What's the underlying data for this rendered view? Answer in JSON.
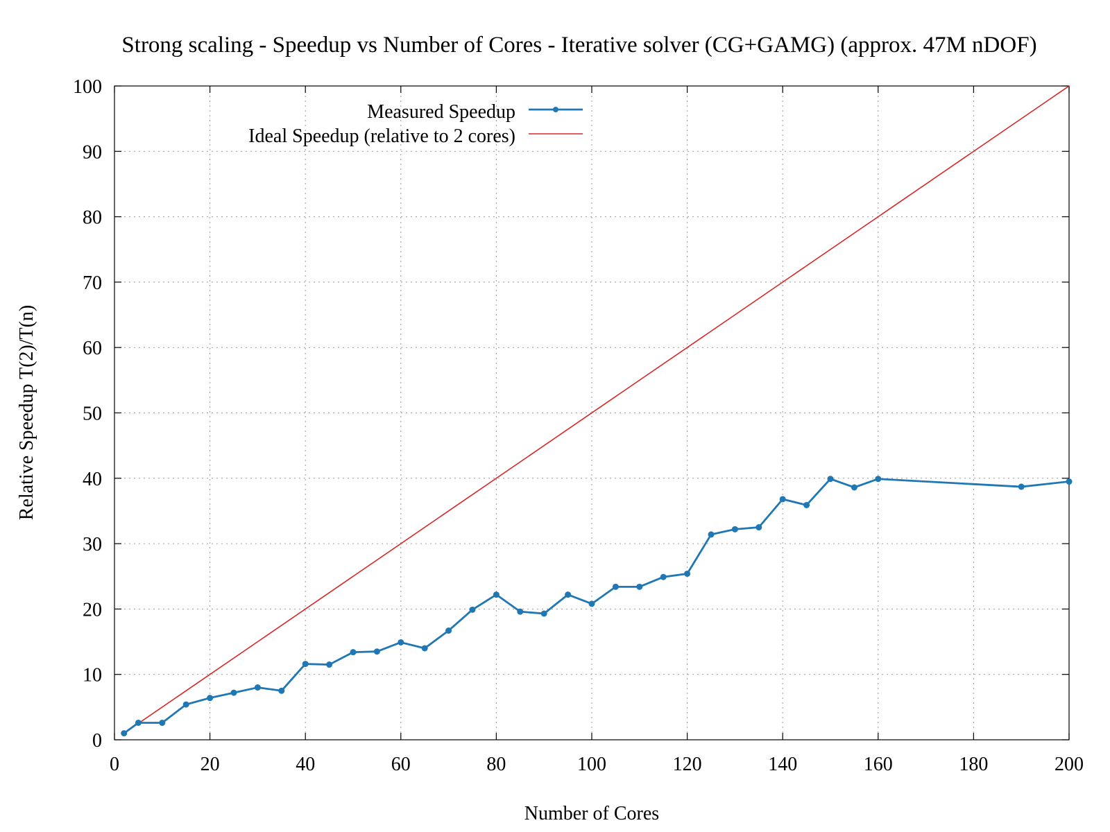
{
  "chart_data": {
    "type": "line",
    "title": "Strong scaling -  Speedup vs Number of Cores - Iterative solver (CG+GAMG) (approx. 47M nDOF)",
    "xlabel": "Number of Cores",
    "ylabel": "Relative Speedup T(2)/T(n)",
    "xlim": [
      0,
      200
    ],
    "ylim": [
      0,
      100
    ],
    "xticks": [
      0,
      20,
      40,
      60,
      80,
      100,
      120,
      140,
      160,
      180,
      200
    ],
    "yticks": [
      0,
      10,
      20,
      30,
      40,
      50,
      60,
      70,
      80,
      90,
      100
    ],
    "grid": true,
    "legend_position": "top-center",
    "series": [
      {
        "name": "Measured Speedup",
        "color": "#1f77b4",
        "marker": "circle",
        "x": [
          2,
          5,
          10,
          15,
          20,
          25,
          30,
          35,
          40,
          45,
          50,
          55,
          60,
          65,
          70,
          75,
          80,
          85,
          90,
          95,
          100,
          105,
          110,
          115,
          120,
          125,
          130,
          135,
          140,
          145,
          150,
          155,
          160,
          190,
          200
        ],
        "y": [
          1.0,
          2.6,
          2.6,
          5.4,
          6.4,
          7.2,
          8.0,
          7.5,
          11.6,
          11.5,
          13.4,
          13.5,
          14.9,
          14.0,
          16.7,
          19.9,
          22.2,
          19.6,
          19.3,
          22.2,
          20.8,
          23.4,
          23.4,
          24.9,
          25.4,
          31.4,
          32.2,
          32.5,
          36.8,
          35.9,
          39.9,
          38.6,
          39.9,
          38.7,
          39.5
        ]
      },
      {
        "name": "Ideal Speedup (relative to 2 cores)",
        "color": "#d62728",
        "marker": "none",
        "x": [
          2,
          200
        ],
        "y": [
          1,
          100
        ]
      }
    ]
  }
}
